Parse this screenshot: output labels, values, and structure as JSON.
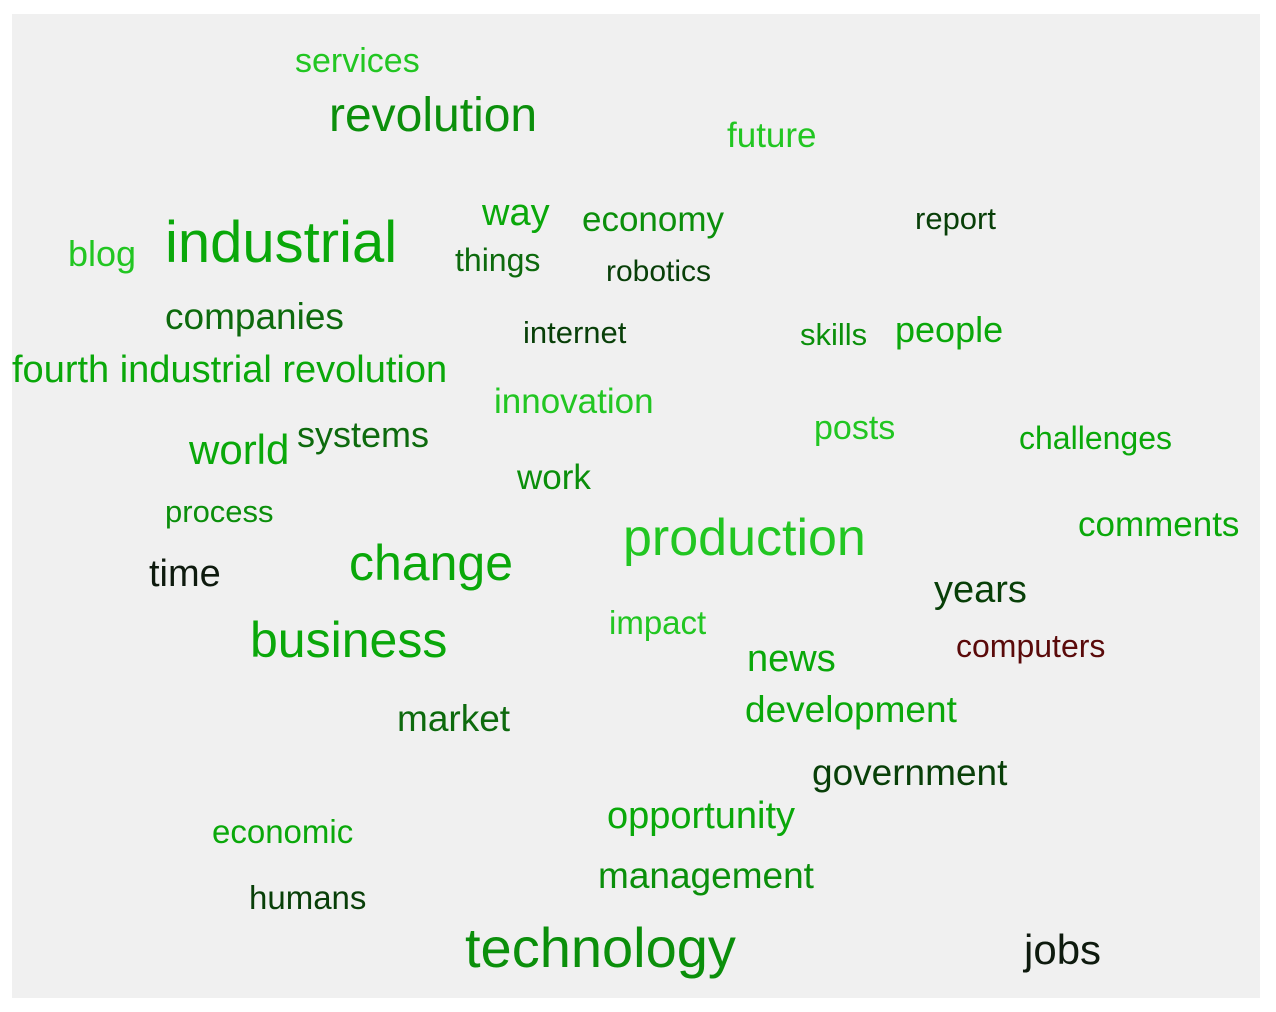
{
  "colors": {
    "background": "#f0f0f0",
    "page": "#ffffff",
    "palette": {
      "bright_green": "#22c622",
      "green": "#0aa80a",
      "mid_green": "#0b8f0b",
      "dark_green": "#0d6a0d",
      "darker_green": "#083f08",
      "near_black": "#0e1a0e",
      "dark_red": "#5a0a0a"
    }
  },
  "words": [
    {
      "text": "services",
      "color": "#22c622"
    },
    {
      "text": "revolution",
      "color": "#0b8f0b"
    },
    {
      "text": "future",
      "color": "#22c622"
    },
    {
      "text": "blog",
      "color": "#22c622"
    },
    {
      "text": "industrial",
      "color": "#0aa80a"
    },
    {
      "text": "way",
      "color": "#0aa80a"
    },
    {
      "text": "things",
      "color": "#0d6a0d"
    },
    {
      "text": "economy",
      "color": "#0b8f0b"
    },
    {
      "text": "robotics",
      "color": "#083f08"
    },
    {
      "text": "report",
      "color": "#083f08"
    },
    {
      "text": "companies",
      "color": "#0d6a0d"
    },
    {
      "text": "internet",
      "color": "#083f08"
    },
    {
      "text": "skills",
      "color": "#0b8f0b"
    },
    {
      "text": "people",
      "color": "#0aa80a"
    },
    {
      "text": "fourth industrial revolution",
      "color": "#0aa80a"
    },
    {
      "text": "innovation",
      "color": "#22c622"
    },
    {
      "text": "posts",
      "color": "#22c622"
    },
    {
      "text": "challenges",
      "color": "#0aa80a"
    },
    {
      "text": "world",
      "color": "#0aa80a"
    },
    {
      "text": "systems",
      "color": "#0d6a0d"
    },
    {
      "text": "work",
      "color": "#0b8f0b"
    },
    {
      "text": "process",
      "color": "#0b8f0b"
    },
    {
      "text": "comments",
      "color": "#0aa80a"
    },
    {
      "text": "production",
      "color": "#22c622"
    },
    {
      "text": "time",
      "color": "#0e1a0e"
    },
    {
      "text": "change",
      "color": "#0aa80a"
    },
    {
      "text": "years",
      "color": "#083f08"
    },
    {
      "text": "impact",
      "color": "#22c622"
    },
    {
      "text": "business",
      "color": "#0aa80a"
    },
    {
      "text": "news",
      "color": "#0aa80a"
    },
    {
      "text": "computers",
      "color": "#5a0a0a"
    },
    {
      "text": "development",
      "color": "#0aa80a"
    },
    {
      "text": "market",
      "color": "#0d6a0d"
    },
    {
      "text": "government",
      "color": "#083f08"
    },
    {
      "text": "opportunity",
      "color": "#0aa80a"
    },
    {
      "text": "economic",
      "color": "#0aa80a"
    },
    {
      "text": "management",
      "color": "#0b8f0b"
    },
    {
      "text": "humans",
      "color": "#083f08"
    },
    {
      "text": "technology",
      "color": "#0b8f0b"
    },
    {
      "text": "jobs",
      "color": "#0e1a0e"
    }
  ]
}
